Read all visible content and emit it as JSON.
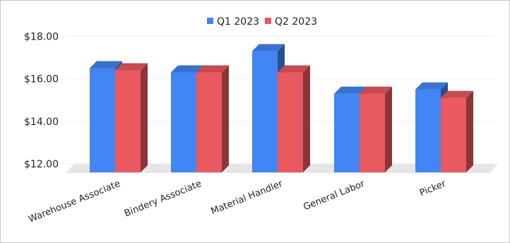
{
  "chart_data": {
    "type": "bar",
    "title": "",
    "xlabel": "",
    "ylabel": "",
    "categories": [
      "Warehouse Associate",
      "Bindery Associate",
      "Material Handler",
      "General Labor",
      "Picker"
    ],
    "series": [
      {
        "name": "Q1 2023",
        "color": "#4285f4",
        "values": [
          16.9,
          16.7,
          17.7,
          15.7,
          15.9
        ]
      },
      {
        "name": "Q2 2023",
        "color": "#e9595f",
        "values": [
          16.8,
          16.7,
          16.7,
          15.7,
          15.5
        ]
      }
    ],
    "y_ticks": [
      "$12.00",
      "$14.00",
      "$16.00",
      "$18.00"
    ],
    "y_tick_values": [
      12,
      14,
      16,
      18
    ],
    "ylim": [
      12,
      18.9
    ],
    "legend_position": "top-center",
    "grid": true,
    "style": "3d-column"
  }
}
